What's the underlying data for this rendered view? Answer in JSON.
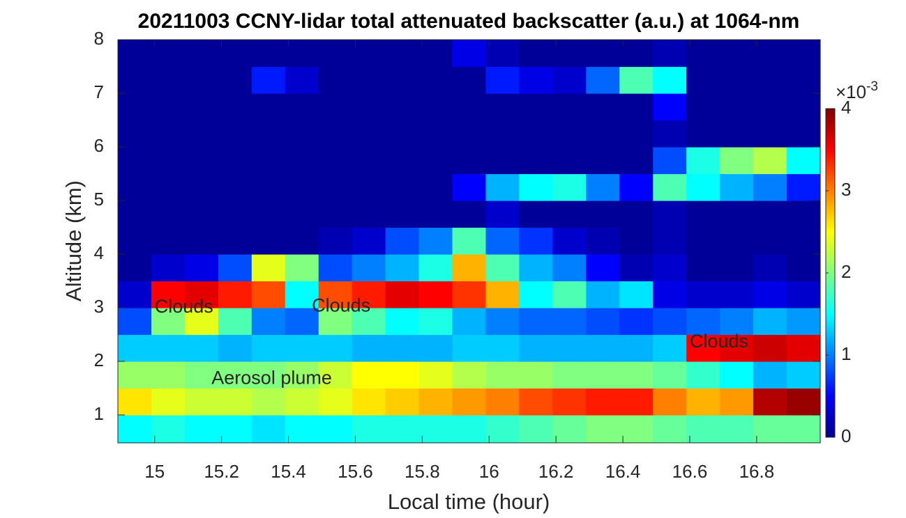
{
  "chart_data": {
    "type": "heatmap",
    "title": "20211003 CCNY-lidar total attenuated backscatter (a.u.) at 1064-nm",
    "xlabel": "Local time (hour)",
    "ylabel": "Altitude (km)",
    "xlim": [
      14.89,
      16.99
    ],
    "ylim": [
      0.48,
      8
    ],
    "xticks": [
      15,
      15.2,
      15.4,
      15.6,
      15.8,
      16,
      16.2,
      16.4,
      16.6,
      16.8
    ],
    "yticks": [
      1,
      2,
      3,
      4,
      5,
      6,
      7,
      8
    ],
    "x_edges": [
      14.89,
      14.99,
      15.09,
      15.19,
      15.29,
      15.39,
      15.49,
      15.59,
      15.69,
      15.79,
      15.89,
      15.99,
      16.09,
      16.19,
      16.29,
      16.39,
      16.49,
      16.59,
      16.69,
      16.79,
      16.89,
      16.99
    ],
    "y_edges": [
      0.48,
      1,
      1.5,
      2,
      2.5,
      3,
      3.5,
      4,
      4.5,
      5,
      5.5,
      6,
      6.5,
      7,
      7.5,
      8
    ],
    "z": [
      [
        1.5,
        1.6,
        1.5,
        1.5,
        1.4,
        1.5,
        1.5,
        1.6,
        1.6,
        1.6,
        1.6,
        1.7,
        1.8,
        1.9,
        2.0,
        2.0,
        1.9,
        1.8,
        1.8,
        1.9,
        1.9
      ],
      [
        2.6,
        2.4,
        2.3,
        2.3,
        2.2,
        2.3,
        2.4,
        2.6,
        2.7,
        2.8,
        2.9,
        3.0,
        3.2,
        3.3,
        3.4,
        3.4,
        3.0,
        2.8,
        2.9,
        3.8,
        3.9
      ],
      [
        2.1,
        2.1,
        2.0,
        2.0,
        2.0,
        2.1,
        2.3,
        2.5,
        2.5,
        2.4,
        2.2,
        2.1,
        2.1,
        2.0,
        2.0,
        2.0,
        1.9,
        1.7,
        1.5,
        1.2,
        1.3
      ],
      [
        1.3,
        1.3,
        1.3,
        1.2,
        1.3,
        1.3,
        1.3,
        1.2,
        1.2,
        1.2,
        1.3,
        1.3,
        1.2,
        1.2,
        1.2,
        1.2,
        1.3,
        3.5,
        3.6,
        3.7,
        3.6
      ],
      [
        0.8,
        2.0,
        2.4,
        1.8,
        1.0,
        0.9,
        2.0,
        1.8,
        1.5,
        1.6,
        1.2,
        1.0,
        0.9,
        0.9,
        0.8,
        0.7,
        0.8,
        0.9,
        1.0,
        1.2,
        1.1
      ],
      [
        0.3,
        3.5,
        3.6,
        3.4,
        3.2,
        1.5,
        3.2,
        3.4,
        3.6,
        3.5,
        3.3,
        2.8,
        1.5,
        1.8,
        1.2,
        1.4,
        0.4,
        0.3,
        0.3,
        0.4,
        0.3
      ],
      [
        0.1,
        0.3,
        0.4,
        0.8,
        2.4,
        2.0,
        0.8,
        1.0,
        1.2,
        1.6,
        2.8,
        1.8,
        1.2,
        1.0,
        0.5,
        0.2,
        0.3,
        0.1,
        0.1,
        0.2,
        0.1
      ],
      [
        0.1,
        0.1,
        0.1,
        0.1,
        0.1,
        0.1,
        0.2,
        0.3,
        0.8,
        1.0,
        1.8,
        0.9,
        0.7,
        0.3,
        0.2,
        0.1,
        0.2,
        0.1,
        0.1,
        0.1,
        0.1
      ],
      [
        0.1,
        0.1,
        0.1,
        0.1,
        0.1,
        0.1,
        0.1,
        0.1,
        0.1,
        0.1,
        0.1,
        0.3,
        0.1,
        0.1,
        0.1,
        0.1,
        0.2,
        0.1,
        0.1,
        0.1,
        0.1
      ],
      [
        0.1,
        0.1,
        0.1,
        0.1,
        0.1,
        0.1,
        0.1,
        0.1,
        0.1,
        0.1,
        0.5,
        1.2,
        1.5,
        1.6,
        1.0,
        0.5,
        1.8,
        1.5,
        1.2,
        1.0,
        0.6
      ],
      [
        0.1,
        0.1,
        0.1,
        0.1,
        0.1,
        0.1,
        0.1,
        0.1,
        0.1,
        0.1,
        0.1,
        0.1,
        0.1,
        0.1,
        0.1,
        0.1,
        0.8,
        1.6,
        2.0,
        2.2,
        1.5
      ],
      [
        0.1,
        0.1,
        0.1,
        0.1,
        0.1,
        0.1,
        0.1,
        0.1,
        0.1,
        0.1,
        0.1,
        0.1,
        0.1,
        0.1,
        0.1,
        0.1,
        0.2,
        0.1,
        0.1,
        0.1,
        0.1
      ],
      [
        0.1,
        0.1,
        0.1,
        0.1,
        0.1,
        0.1,
        0.1,
        0.1,
        0.1,
        0.1,
        0.1,
        0.1,
        0.1,
        0.1,
        0.1,
        0.1,
        0.5,
        0.1,
        0.1,
        0.1,
        0.1
      ],
      [
        0.1,
        0.1,
        0.1,
        0.1,
        0.6,
        0.3,
        0.1,
        0.1,
        0.1,
        0.1,
        0.1,
        0.6,
        0.4,
        0.3,
        0.9,
        1.8,
        1.5,
        0.1,
        0.1,
        0.1,
        0.1
      ],
      [
        0.1,
        0.1,
        0.1,
        0.1,
        0.1,
        0.1,
        0.1,
        0.1,
        0.1,
        0.1,
        0.4,
        0.2,
        0.1,
        0.1,
        0.1,
        0.1,
        0.2,
        0.1,
        0.1,
        0.1,
        0.1
      ]
    ],
    "colormap": "jet",
    "clim": [
      0,
      4
    ],
    "cticks": [
      0,
      1,
      2,
      3,
      4
    ],
    "colorbar_multiplier": "×10",
    "colorbar_exponent": "-3",
    "annotations": [
      {
        "text": "Clouds",
        "x": 15.0,
        "y": 3.0,
        "color": "#ffe600"
      },
      {
        "text": "Clouds",
        "x": 15.47,
        "y": 3.02,
        "color": "#ffe600"
      },
      {
        "text": "Clouds",
        "x": 16.6,
        "y": 2.35,
        "color": "#ffe600"
      },
      {
        "text": "Aerosol plume",
        "x": 15.17,
        "y": 1.67,
        "color": "#e08a1e"
      }
    ]
  }
}
